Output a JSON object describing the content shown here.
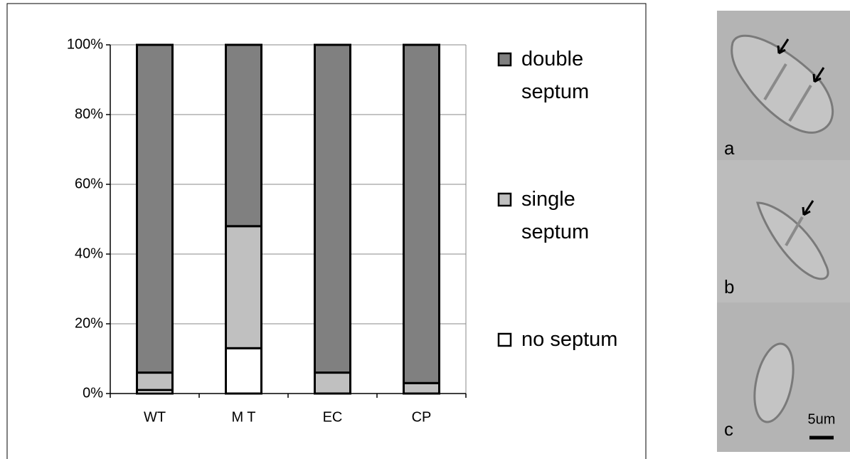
{
  "chart_data": {
    "type": "stacked-bar",
    "categories": [
      "WT",
      "M T",
      "EC",
      "CP"
    ],
    "series": [
      {
        "name": "no septum",
        "color": "#ffffff",
        "values": [
          1,
          13,
          0,
          0
        ]
      },
      {
        "name": "single septum",
        "color": "#c0c0c0",
        "values": [
          5,
          35,
          6,
          3
        ]
      },
      {
        "name": "double septum",
        "color": "#808080",
        "values": [
          94,
          52,
          94,
          97
        ]
      }
    ],
    "ylim": [
      0,
      100
    ],
    "yticks": [
      {
        "value": 0,
        "label": "0%"
      },
      {
        "value": 20,
        "label": "20%"
      },
      {
        "value": 40,
        "label": "40%"
      },
      {
        "value": 60,
        "label": "60%"
      },
      {
        "value": 80,
        "label": "80%"
      },
      {
        "value": 100,
        "label": "100%"
      }
    ],
    "grid": true
  },
  "micrograph": {
    "panels": [
      "a",
      "b",
      "c"
    ],
    "scale_label": "5um"
  }
}
